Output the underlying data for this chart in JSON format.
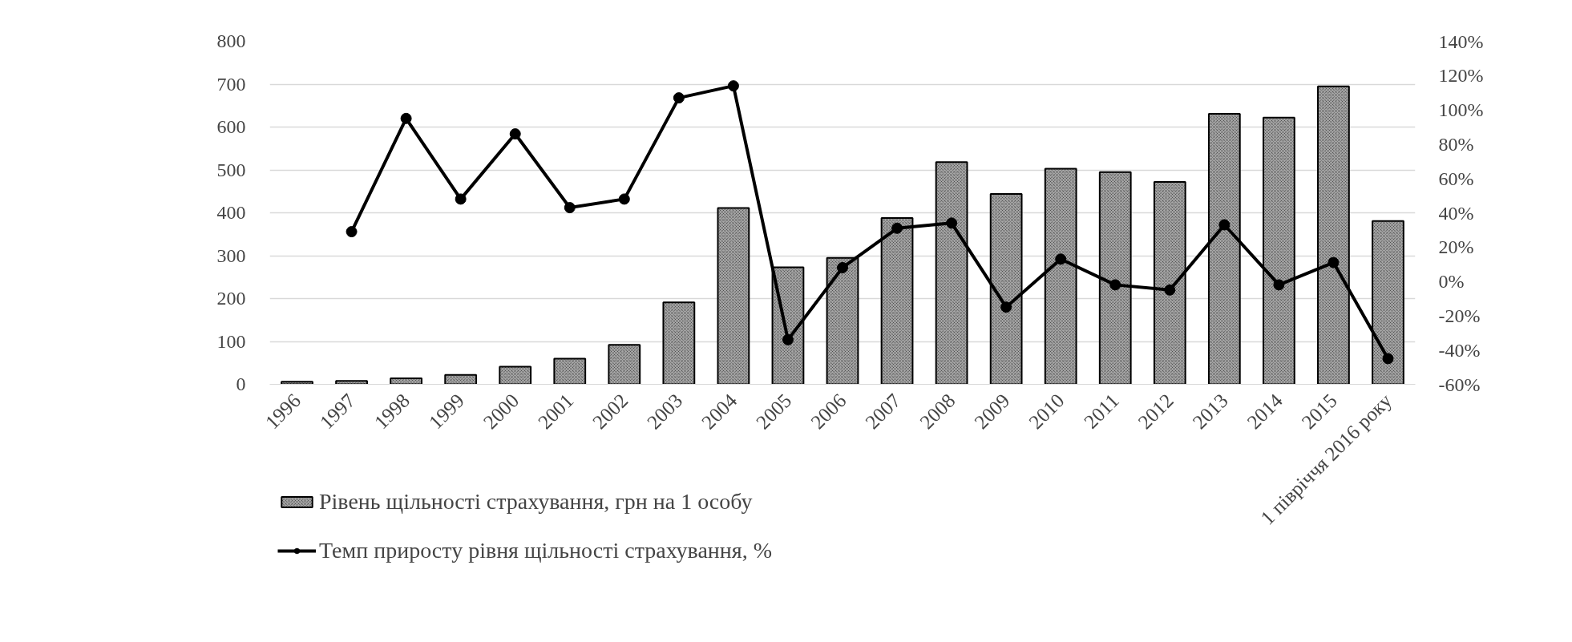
{
  "chart_data": {
    "type": "bar",
    "categories": [
      "1996",
      "1997",
      "1998",
      "1999",
      "2000",
      "2001",
      "2002",
      "2003",
      "2004",
      "2005",
      "2006",
      "2007",
      "2008",
      "2009",
      "2010",
      "2011",
      "2012",
      "2013",
      "2014",
      "2015",
      "1 півріччя 2016 року"
    ],
    "series": [
      {
        "name": "Рівень щільності страхування, грн на 1 особу",
        "color": "#a6a6a6",
        "values": [
          6,
          8,
          14,
          22,
          41,
          60,
          92,
          191,
          411,
          273,
          295,
          388,
          518,
          444,
          503,
          495,
          472,
          631,
          622,
          695,
          381
        ]
      },
      {
        "name": "Темп приросту рівня щільності страхування, %",
        "type": "line",
        "axis": "y2",
        "color": "#000000",
        "marker": "circle",
        "values": [
          null,
          29,
          95,
          48,
          86,
          43,
          48,
          107,
          114,
          -34,
          8,
          31,
          34,
          -15,
          13,
          -2,
          -5,
          33,
          -2,
          11,
          -45
        ]
      }
    ],
    "ylim": [
      0,
      800
    ],
    "yticks": [
      0,
      100,
      200,
      300,
      400,
      500,
      600,
      700,
      800
    ],
    "y2lim": [
      -60,
      140
    ],
    "y2ticks": [
      {
        "value": -60,
        "label": "-60%"
      },
      {
        "value": -40,
        "label": "-40%"
      },
      {
        "value": -20,
        "label": "-20%"
      },
      {
        "value": 0,
        "label": "0%"
      },
      {
        "value": 20,
        "label": "20%"
      },
      {
        "value": 40,
        "label": "40%"
      },
      {
        "value": 60,
        "label": "60%"
      },
      {
        "value": 80,
        "label": "80%"
      },
      {
        "value": 100,
        "label": "100%"
      },
      {
        "value": 120,
        "label": "120%"
      },
      {
        "value": 140,
        "label": "140%"
      }
    ],
    "grid": "y",
    "legend": "bottom"
  }
}
